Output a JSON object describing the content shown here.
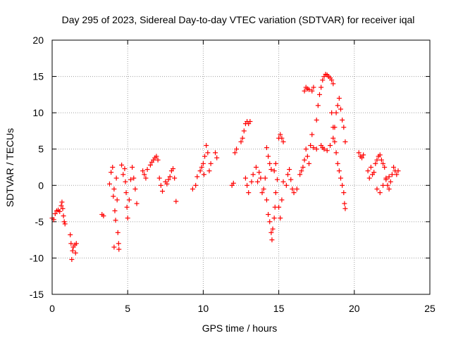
{
  "chart_data": {
    "type": "scatter",
    "title": "Day 295 of 2023, Sidereal Day-to-day VTEC variation (SDTVAR) for receiver iqal",
    "xlabel": "GPS time / hours",
    "ylabel": "SDTVAR / TECUs",
    "xlim": [
      0,
      25
    ],
    "ylim": [
      -15,
      20
    ],
    "xticks": [
      0,
      5,
      10,
      15,
      20,
      25
    ],
    "yticks": [
      -15,
      -10,
      -5,
      0,
      5,
      10,
      15,
      20
    ],
    "grid": true,
    "marker": "+",
    "color": "#ff0000",
    "series": [
      {
        "name": "SDTVAR",
        "points": [
          [
            0.0,
            -4.5
          ],
          [
            0.1,
            -4.7
          ],
          [
            0.2,
            -3.9
          ],
          [
            0.3,
            -3.5
          ],
          [
            0.4,
            -3.4
          ],
          [
            0.5,
            -3.6
          ],
          [
            0.6,
            -2.8
          ],
          [
            0.65,
            -2.3
          ],
          [
            0.7,
            -3.2
          ],
          [
            0.75,
            -4.2
          ],
          [
            0.8,
            -5.0
          ],
          [
            0.85,
            -5.3
          ],
          [
            1.2,
            -6.8
          ],
          [
            1.25,
            -8.0
          ],
          [
            1.3,
            -10.2
          ],
          [
            1.35,
            -9.0
          ],
          [
            1.4,
            -8.5
          ],
          [
            1.5,
            -8.2
          ],
          [
            1.55,
            -9.3
          ],
          [
            1.6,
            -8.0
          ],
          [
            3.3,
            -4.0
          ],
          [
            3.4,
            -4.2
          ],
          [
            3.8,
            0.2
          ],
          [
            3.9,
            1.8
          ],
          [
            4.0,
            2.5
          ],
          [
            4.05,
            -1.5
          ],
          [
            4.1,
            -0.5
          ],
          [
            4.15,
            -3.5
          ],
          [
            4.2,
            -4.8
          ],
          [
            4.25,
            1.0
          ],
          [
            4.3,
            -2.0
          ],
          [
            4.35,
            -6.5
          ],
          [
            4.4,
            -8.0
          ],
          [
            4.42,
            -8.8
          ],
          [
            4.1,
            -8.5
          ],
          [
            4.6,
            2.8
          ],
          [
            4.7,
            1.5
          ],
          [
            4.8,
            2.3
          ],
          [
            4.85,
            0.5
          ],
          [
            4.9,
            -1.0
          ],
          [
            4.95,
            -3.0
          ],
          [
            5.0,
            -4.5
          ],
          [
            5.1,
            -2.0
          ],
          [
            5.2,
            0.8
          ],
          [
            5.3,
            2.5
          ],
          [
            5.4,
            1.0
          ],
          [
            5.5,
            -0.5
          ],
          [
            5.6,
            -2.5
          ],
          [
            6.0,
            2.0
          ],
          [
            6.1,
            1.5
          ],
          [
            6.2,
            1.0
          ],
          [
            6.3,
            2.2
          ],
          [
            6.5,
            2.8
          ],
          [
            6.6,
            3.2
          ],
          [
            6.7,
            3.5
          ],
          [
            6.8,
            3.8
          ],
          [
            6.9,
            4.0
          ],
          [
            7.0,
            3.5
          ],
          [
            7.1,
            1.0
          ],
          [
            7.2,
            0.0
          ],
          [
            7.3,
            -0.8
          ],
          [
            7.5,
            0.5
          ],
          [
            7.6,
            0.2
          ],
          [
            7.7,
            0.8
          ],
          [
            7.8,
            1.2
          ],
          [
            7.9,
            2.0
          ],
          [
            8.0,
            2.3
          ],
          [
            8.1,
            1.0
          ],
          [
            8.2,
            -2.2
          ],
          [
            9.3,
            -0.5
          ],
          [
            9.5,
            0.0
          ],
          [
            9.6,
            1.2
          ],
          [
            9.8,
            2.0
          ],
          [
            9.9,
            2.5
          ],
          [
            10.0,
            3.0
          ],
          [
            10.05,
            1.5
          ],
          [
            10.1,
            4.0
          ],
          [
            10.2,
            5.5
          ],
          [
            10.3,
            4.5
          ],
          [
            10.4,
            2.0
          ],
          [
            10.5,
            3.0
          ],
          [
            10.8,
            4.5
          ],
          [
            10.9,
            3.8
          ],
          [
            11.9,
            0.0
          ],
          [
            12.0,
            0.3
          ],
          [
            12.1,
            4.5
          ],
          [
            12.2,
            5.0
          ],
          [
            12.5,
            6.0
          ],
          [
            12.6,
            6.5
          ],
          [
            12.7,
            7.5
          ],
          [
            12.8,
            8.5
          ],
          [
            12.9,
            8.8
          ],
          [
            13.0,
            8.5
          ],
          [
            13.1,
            8.8
          ],
          [
            12.8,
            1.0
          ],
          [
            12.9,
            0.0
          ],
          [
            13.0,
            -1.0
          ],
          [
            13.2,
            0.5
          ],
          [
            13.3,
            1.5
          ],
          [
            13.5,
            2.5
          ],
          [
            13.6,
            0.5
          ],
          [
            13.7,
            1.8
          ],
          [
            13.8,
            1.0
          ],
          [
            13.9,
            -1.0
          ],
          [
            14.0,
            -0.5
          ],
          [
            14.1,
            1.0
          ],
          [
            14.2,
            -2.0
          ],
          [
            14.3,
            -4.0
          ],
          [
            14.4,
            -5.0
          ],
          [
            14.5,
            -6.5
          ],
          [
            14.55,
            -7.5
          ],
          [
            14.6,
            -6.0
          ],
          [
            14.7,
            -4.5
          ],
          [
            14.75,
            -3.0
          ],
          [
            14.8,
            -1.0
          ],
          [
            14.9,
            0.8
          ],
          [
            15.0,
            -3.0
          ],
          [
            15.1,
            -4.5
          ],
          [
            15.2,
            -2.0
          ],
          [
            15.3,
            0.5
          ],
          [
            14.2,
            5.2
          ],
          [
            14.3,
            4.0
          ],
          [
            14.4,
            3.0
          ],
          [
            14.5,
            2.2
          ],
          [
            14.7,
            2.0
          ],
          [
            14.8,
            3.0
          ],
          [
            15.0,
            6.5
          ],
          [
            15.1,
            7.0
          ],
          [
            15.2,
            6.5
          ],
          [
            15.3,
            6.0
          ],
          [
            15.5,
            0.0
          ],
          [
            15.6,
            1.5
          ],
          [
            15.7,
            2.2
          ],
          [
            15.8,
            0.8
          ],
          [
            15.9,
            -0.5
          ],
          [
            16.0,
            -1.0
          ],
          [
            16.2,
            -0.5
          ],
          [
            16.4,
            1.5
          ],
          [
            16.5,
            2.0
          ],
          [
            16.6,
            2.5
          ],
          [
            16.7,
            3.5
          ],
          [
            16.8,
            5.0
          ],
          [
            16.9,
            4.0
          ],
          [
            17.0,
            3.0
          ],
          [
            17.1,
            5.5
          ],
          [
            17.2,
            7.0
          ],
          [
            17.3,
            5.2
          ],
          [
            17.5,
            5.0
          ],
          [
            16.7,
            13.0
          ],
          [
            16.8,
            13.5
          ],
          [
            16.9,
            13.3
          ],
          [
            17.0,
            13.2
          ],
          [
            17.2,
            13.0
          ],
          [
            17.3,
            13.5
          ],
          [
            17.5,
            9.0
          ],
          [
            17.6,
            11.0
          ],
          [
            17.7,
            12.5
          ],
          [
            17.8,
            13.5
          ],
          [
            17.9,
            14.5
          ],
          [
            18.0,
            15.0
          ],
          [
            18.1,
            15.3
          ],
          [
            18.2,
            15.2
          ],
          [
            18.3,
            15.0
          ],
          [
            18.4,
            14.8
          ],
          [
            18.5,
            14.5
          ],
          [
            18.6,
            14.0
          ],
          [
            17.8,
            5.5
          ],
          [
            17.9,
            5.2
          ],
          [
            18.0,
            5.0
          ],
          [
            18.2,
            4.8
          ],
          [
            18.4,
            5.5
          ],
          [
            18.6,
            6.5
          ],
          [
            18.7,
            8.0
          ],
          [
            18.8,
            10.0
          ],
          [
            18.9,
            11.0
          ],
          [
            19.0,
            12.0
          ],
          [
            19.1,
            10.5
          ],
          [
            19.2,
            9.0
          ],
          [
            19.3,
            8.0
          ],
          [
            19.4,
            6.0
          ],
          [
            18.5,
            10.0
          ],
          [
            18.6,
            8.0
          ],
          [
            18.7,
            6.0
          ],
          [
            18.8,
            4.5
          ],
          [
            18.9,
            3.0
          ],
          [
            19.0,
            2.0
          ],
          [
            19.1,
            1.0
          ],
          [
            19.2,
            0.0
          ],
          [
            19.3,
            -1.0
          ],
          [
            19.35,
            -2.5
          ],
          [
            19.4,
            -3.2
          ],
          [
            20.3,
            4.5
          ],
          [
            20.4,
            4.0
          ],
          [
            20.5,
            3.8
          ],
          [
            20.6,
            4.2
          ],
          [
            20.9,
            2.0
          ],
          [
            21.0,
            1.0
          ],
          [
            21.1,
            2.5
          ],
          [
            21.2,
            1.5
          ],
          [
            21.3,
            1.8
          ],
          [
            21.4,
            3.0
          ],
          [
            21.5,
            3.5
          ],
          [
            21.6,
            4.0
          ],
          [
            21.7,
            4.2
          ],
          [
            21.8,
            3.5
          ],
          [
            21.9,
            3.0
          ],
          [
            22.0,
            2.5
          ],
          [
            22.1,
            1.0
          ],
          [
            22.2,
            0.0
          ],
          [
            22.3,
            -0.5
          ],
          [
            22.4,
            0.5
          ],
          [
            22.5,
            1.5
          ],
          [
            22.6,
            2.5
          ],
          [
            22.7,
            2.0
          ],
          [
            22.8,
            1.5
          ],
          [
            22.9,
            2.0
          ],
          [
            21.5,
            -0.5
          ],
          [
            21.7,
            -1.0
          ],
          [
            21.9,
            0.0
          ],
          [
            22.1,
            0.8
          ],
          [
            22.3,
            1.2
          ]
        ]
      }
    ]
  }
}
